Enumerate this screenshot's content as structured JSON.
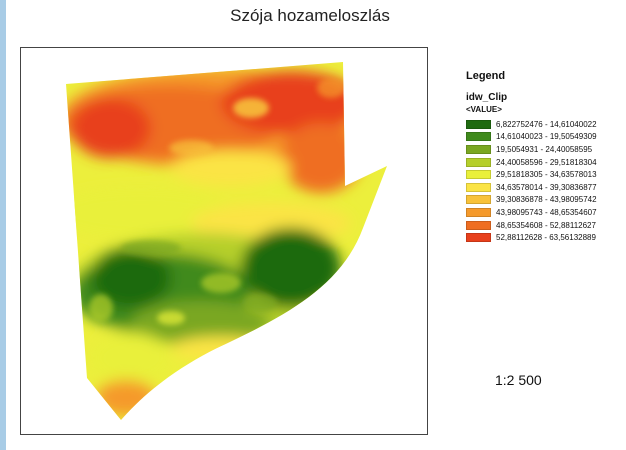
{
  "map": {
    "title": "Szója hozameloszlás",
    "scale": "1:2 500"
  },
  "legend": {
    "title": "Legend",
    "layer": "idw_Clip",
    "field": "<VALUE>",
    "classes": [
      {
        "label": "6,822752476 - 14,61040022",
        "color": "#1f6a10"
      },
      {
        "label": "14,61040023 - 19,50549309",
        "color": "#3f8a1c"
      },
      {
        "label": "19,5054931 - 24,40058595",
        "color": "#7aa722"
      },
      {
        "label": "24,40058596 - 29,51818304",
        "color": "#b5cf2c"
      },
      {
        "label": "29,51818305 - 34,63578013",
        "color": "#e9f03a"
      },
      {
        "label": "34,63578014 - 39,30836877",
        "color": "#fbe445"
      },
      {
        "label": "39,30836878 - 43,98095742",
        "color": "#f8c23a"
      },
      {
        "label": "43,98095743 - 48,65354607",
        "color": "#f59a2c"
      },
      {
        "label": "48,65354608 - 52,88112627",
        "color": "#ef6e22"
      },
      {
        "label": "52,88112628 - 63,56132889",
        "color": "#e8401c"
      }
    ]
  }
}
